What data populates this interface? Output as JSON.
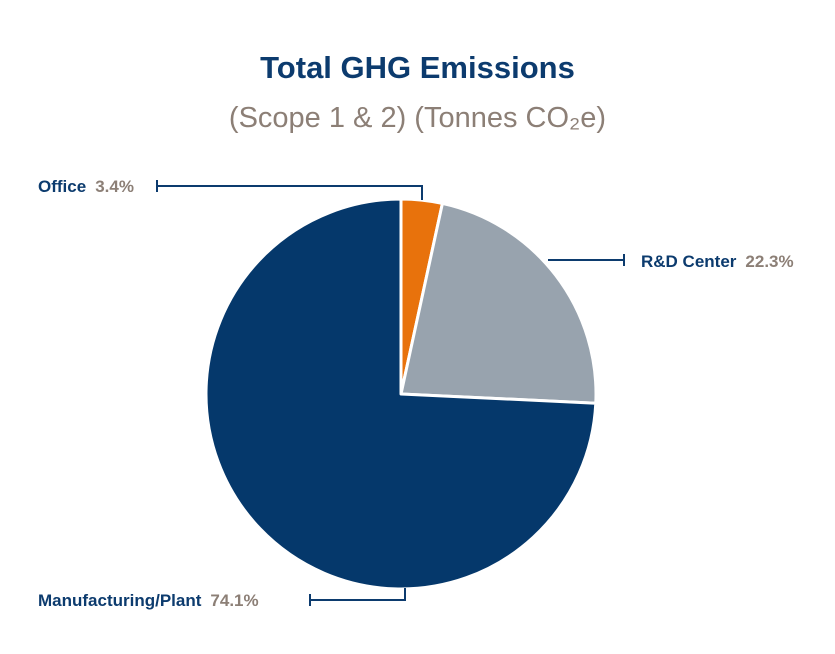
{
  "chart_data": {
    "type": "pie",
    "title": "Total GHG Emissions",
    "subtitle": "(Scope 1 & 2) (Tonnes CO₂e)",
    "slices": [
      {
        "name": "Office",
        "value": 3.4,
        "label": "3.4%",
        "color": "#e8720c"
      },
      {
        "name": "R&D Center",
        "value": 22.3,
        "label": "22.3%",
        "color": "#98a3ae"
      },
      {
        "name": "Manufacturing/Plant",
        "value": 74.1,
        "label": "74.1%",
        "color": "#05386b"
      }
    ]
  },
  "colors": {
    "title": "#0c3b6e",
    "subtitle": "#8c7f76",
    "leader_line": "#0c3b6e"
  }
}
